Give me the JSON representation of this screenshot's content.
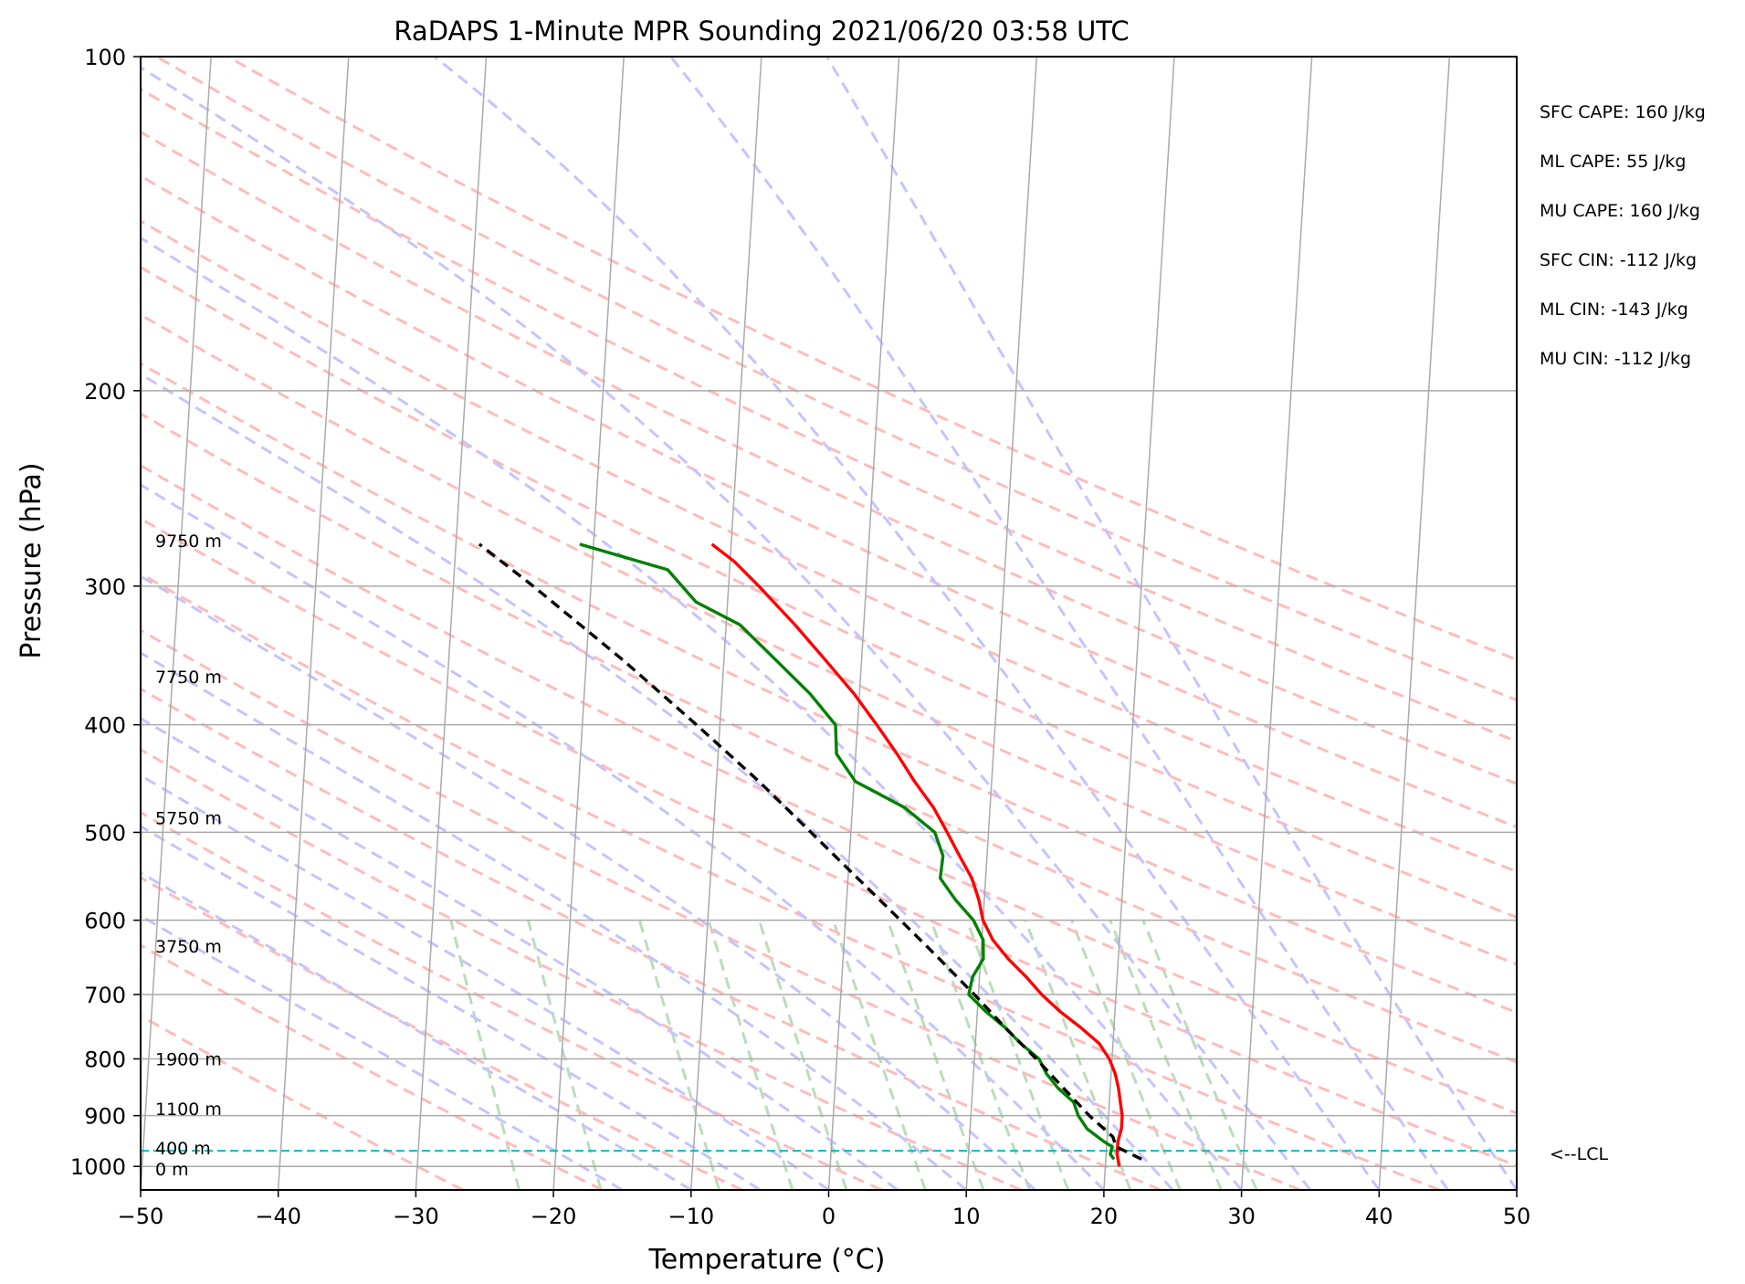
{
  "chart_data": {
    "type": "line",
    "diagram": "skew-t log-p",
    "title": "RaDAPS 1-Minute MPR Sounding 2021/06/20 03:58 UTC",
    "xlabel": "Temperature (°C)",
    "ylabel": "Pressure (hPa)",
    "xlim": [
      -50,
      50
    ],
    "ylim": [
      1050,
      100
    ],
    "y_scale": "log",
    "grid": true,
    "x_ticks": [
      "−50",
      "−40",
      "−30",
      "−20",
      "−10",
      "0",
      "10",
      "20",
      "30",
      "40",
      "50"
    ],
    "y_ticks": [
      "100",
      "200",
      "300",
      "400",
      "500",
      "600",
      "700",
      "800",
      "900",
      "1000"
    ],
    "x_tick_values": [
      -50,
      -40,
      -30,
      -20,
      -10,
      0,
      10,
      20,
      30,
      40,
      50
    ],
    "y_tick_values": [
      100,
      200,
      300,
      400,
      500,
      600,
      700,
      800,
      900,
      1000
    ],
    "series": [
      {
        "name": "",
        "variable": "temperature",
        "color": "#ff0000",
        "style": "solid",
        "points": [
          [
            1000,
            21.0
          ],
          [
            975,
            20.8
          ],
          [
            950,
            20.8
          ],
          [
            925,
            21.0
          ],
          [
            900,
            21.0
          ],
          [
            875,
            20.8
          ],
          [
            850,
            20.6
          ],
          [
            825,
            20.3
          ],
          [
            800,
            19.8
          ],
          [
            775,
            19.0
          ],
          [
            750,
            17.6
          ],
          [
            725,
            16.0
          ],
          [
            700,
            14.6
          ],
          [
            675,
            13.4
          ],
          [
            650,
            12.0
          ],
          [
            625,
            10.8
          ],
          [
            600,
            10.0
          ],
          [
            575,
            9.6
          ],
          [
            550,
            9.0
          ],
          [
            525,
            8.0
          ],
          [
            500,
            7.0
          ],
          [
            475,
            5.9
          ],
          [
            450,
            4.4
          ],
          [
            425,
            3.0
          ],
          [
            400,
            1.4
          ],
          [
            375,
            -0.4
          ],
          [
            350,
            -2.6
          ],
          [
            325,
            -5.0
          ],
          [
            300,
            -7.8
          ],
          [
            285,
            -9.7
          ],
          [
            275,
            -11.4
          ]
        ]
      },
      {
        "name": "",
        "variable": "dewpoint",
        "color": "#008000",
        "style": "solid",
        "points": [
          [
            985,
            20.6
          ],
          [
            975,
            20.3
          ],
          [
            960,
            20.4
          ],
          [
            950,
            19.8
          ],
          [
            925,
            18.5
          ],
          [
            900,
            17.8
          ],
          [
            875,
            17.4
          ],
          [
            850,
            16.2
          ],
          [
            825,
            15.3
          ],
          [
            800,
            14.7
          ],
          [
            775,
            13.3
          ],
          [
            750,
            12.1
          ],
          [
            725,
            10.6
          ],
          [
            700,
            9.3
          ],
          [
            675,
            9.5
          ],
          [
            650,
            10.2
          ],
          [
            625,
            10.1
          ],
          [
            600,
            9.3
          ],
          [
            575,
            7.9
          ],
          [
            550,
            6.7
          ],
          [
            525,
            6.8
          ],
          [
            500,
            6.1
          ],
          [
            475,
            3.8
          ],
          [
            450,
            0.1
          ],
          [
            425,
            -1.4
          ],
          [
            400,
            -1.6
          ],
          [
            375,
            -3.6
          ],
          [
            350,
            -6.2
          ],
          [
            325,
            -9.0
          ],
          [
            310,
            -12.3
          ],
          [
            290,
            -14.5
          ],
          [
            275,
            -21.0
          ]
        ]
      },
      {
        "name": "",
        "variable": "parcel_profile",
        "color": "#000000",
        "style": "dashed",
        "points": [
          [
            985,
            22.6
          ],
          [
            960,
            20.7
          ],
          [
            940,
            20.4
          ],
          [
            900,
            18.6
          ],
          [
            850,
            16.6
          ],
          [
            800,
            14.5
          ],
          [
            750,
            12.1
          ],
          [
            700,
            9.7
          ],
          [
            650,
            7.0
          ],
          [
            600,
            4.0
          ],
          [
            550,
            0.7
          ],
          [
            500,
            -2.9
          ],
          [
            450,
            -6.9
          ],
          [
            400,
            -11.7
          ],
          [
            350,
            -17.3
          ],
          [
            300,
            -24.2
          ],
          [
            275,
            -28.3
          ]
        ]
      }
    ],
    "lcl_pressure": 968,
    "lcl_label": "<--LCL",
    "height_labels": [
      {
        "text": "9750 m",
        "pressure": 273
      },
      {
        "text": "7750 m",
        "pressure": 362
      },
      {
        "text": "5750 m",
        "pressure": 485
      },
      {
        "text": "3750 m",
        "pressure": 633
      },
      {
        "text": "1900 m",
        "pressure": 800
      },
      {
        "text": "1100 m",
        "pressure": 887
      },
      {
        "text": "400 m",
        "pressure": 962
      },
      {
        "text": "0 m",
        "pressure": 1005
      }
    ],
    "stats": [
      "SFC CAPE: 160 J/kg",
      "ML CAPE: 55 J/kg",
      "MU CAPE: 160 J/kg",
      "SFC CIN: -112 J/kg",
      "ML CIN: -143 J/kg",
      "MU CIN: -112 J/kg"
    ],
    "colors": {
      "isotherm": "#aaaaaa",
      "dry_adiabat": "#ffbbbb",
      "moist_adiabat": "#c4c4ff",
      "mixing_ratio": "#bcdcbc",
      "lcl_line": "#00bfbf"
    }
  }
}
